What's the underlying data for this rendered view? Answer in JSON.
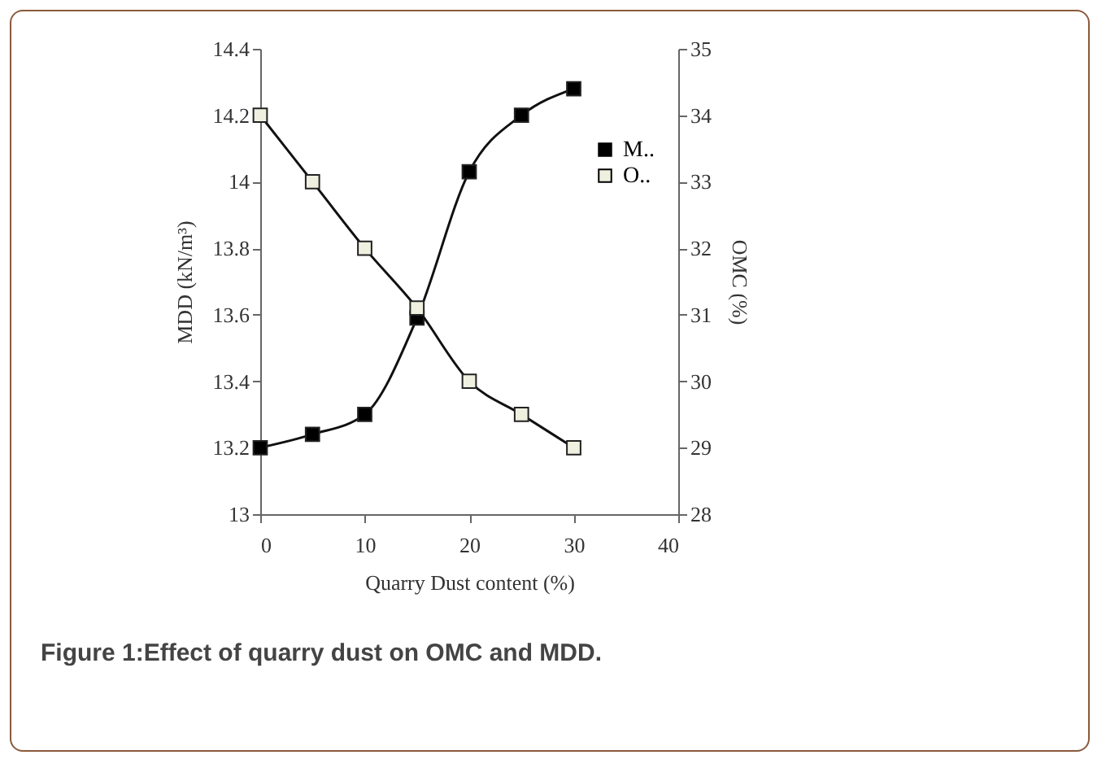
{
  "chart_data": {
    "type": "line",
    "xlabel": "Quarry Dust content (%)",
    "ylabel": "MDD (kN/m³)",
    "y2label": "OMC (%)",
    "annotations": [
      "Figure 1:Effect of quarry dust on OMC and MDD."
    ],
    "x": [
      0,
      5,
      10,
      15,
      20,
      25,
      30
    ],
    "series": [
      {
        "name": "M..",
        "color": "#000000",
        "values": [
          13.2,
          13.24,
          13.3,
          13.59,
          14.03,
          14.2,
          14.28
        ]
      },
      {
        "name": "O..",
        "color": "#f0f0e0",
        "axis": "y2",
        "values": [
          34,
          33,
          32,
          31.1,
          30,
          29.5,
          29
        ]
      }
    ],
    "xlim": [
      0,
      40
    ],
    "xticks": [
      0,
      10,
      20,
      30,
      40
    ],
    "ylim": [
      13,
      14.4
    ],
    "yticks": [
      13,
      13.2,
      13.4,
      13.6,
      13.8,
      14,
      14.2,
      14.4
    ],
    "y2lim": [
      28,
      35
    ],
    "y2ticks": [
      28,
      29,
      30,
      31,
      32,
      33,
      34,
      35
    ],
    "legend": "right",
    "grid": false,
    "marker": "square",
    "line_style": "solid"
  }
}
